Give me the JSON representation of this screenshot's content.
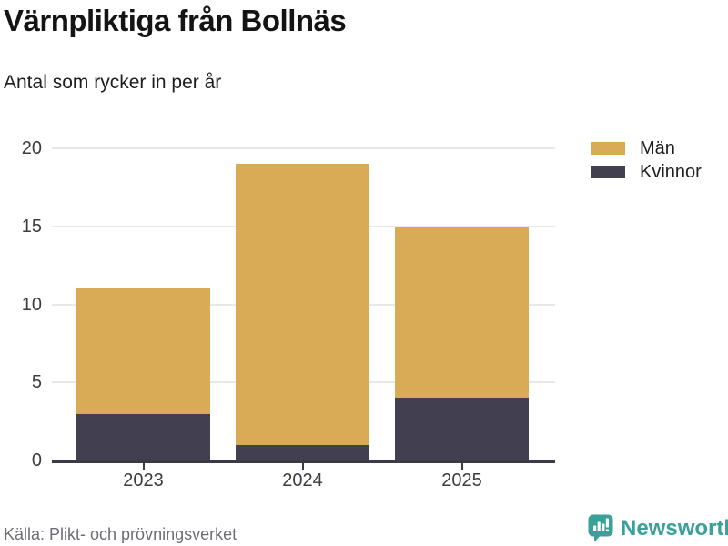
{
  "header": {
    "title": "Värnpliktiga från Bollnäs",
    "subtitle": "Antal som rycker in per år"
  },
  "chart_data": {
    "type": "bar",
    "stacked": true,
    "title": "Värnpliktiga från Bollnäs",
    "subtitle": "Antal som rycker in per år",
    "categories": [
      "2023",
      "2024",
      "2025"
    ],
    "series": [
      {
        "name": "Män",
        "color": "#d9ab57",
        "values": [
          8,
          18,
          11
        ]
      },
      {
        "name": "Kvinnor",
        "color": "#424050",
        "values": [
          3,
          1,
          4
        ]
      }
    ],
    "stack_order_bottom_to_top": [
      "Kvinnor",
      "Män"
    ],
    "totals": [
      11,
      19,
      15
    ],
    "xlabel": "",
    "ylabel": "",
    "ylim": [
      0,
      20
    ],
    "yticks": [
      0,
      5,
      10,
      15,
      20
    ],
    "grid": true,
    "legend_position": "top-right",
    "axis_color": "#3b3b47",
    "grid_color": "#e8e8e8"
  },
  "footer": {
    "source": "Källa: Plikt- och prövningsverket",
    "brand": "Newsworthy",
    "brand_color": "#3aa19a"
  }
}
